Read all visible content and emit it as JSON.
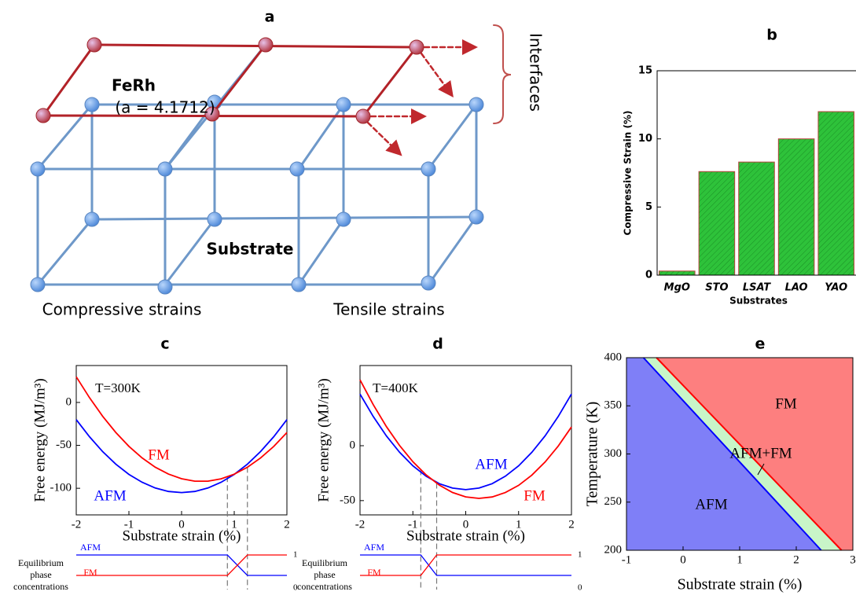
{
  "diagram": {
    "title": "a",
    "film": "FeRh",
    "lattice": "(a = 4.1712)",
    "substrate": "Substrate",
    "left_label": "Compressive strains",
    "right_label": "Tensile strains",
    "interfaces": "Interfaces"
  },
  "chart_data": [
    {
      "type": "bar",
      "title": "b",
      "x_label": "Substrates",
      "y_label": "Compressive Strain (%)",
      "categories": [
        "MgO",
        "STO",
        "LSAT",
        "LAO",
        "YAO"
      ],
      "values": [
        0.3,
        7.6,
        8.3,
        10.0,
        12.0
      ],
      "color": "#2ec23a",
      "ylim": [
        0,
        15
      ],
      "yticks": [
        0,
        5,
        10,
        15
      ]
    },
    {
      "type": "line",
      "title": "c",
      "x_label": "Substrate strain (%)",
      "y_label": "Free energy (MJ/m³)",
      "annotation": "T=300K",
      "x": [
        -2,
        -1.75,
        -1.5,
        -1.25,
        -1,
        -0.75,
        -0.5,
        -0.25,
        0,
        0.25,
        0.5,
        0.75,
        1,
        1.25,
        1.5,
        1.75,
        2
      ],
      "series": [
        {
          "name": "AFM",
          "color": "#0000ff",
          "values": [
            -20,
            -39.9,
            -57.2,
            -71.8,
            -83.8,
            -93,
            -99.7,
            -103.7,
            -105,
            -103.7,
            -99.7,
            -93,
            -83.8,
            -71.8,
            -57.2,
            -39.9,
            -20
          ]
        },
        {
          "name": "FM",
          "color": "#ff0000",
          "values": [
            29.9,
            5.6,
            -16,
            -34.9,
            -51.1,
            -64.6,
            -75.4,
            -83.5,
            -88.9,
            -91.7,
            -91.7,
            -89,
            -83.6,
            -75.5,
            -64.7,
            -51.2,
            -35
          ]
        }
      ],
      "xlim": [
        -2,
        2
      ],
      "xticks": [
        -2,
        -1,
        0,
        1,
        2
      ],
      "ylim": [
        -131,
        43
      ],
      "yticks": [
        0,
        -50,
        -100
      ],
      "coexistence": [
        0.87,
        1.25
      ],
      "phase_label": [
        "Equilibrium",
        "phase",
        "concentrations"
      ],
      "levels": [
        1,
        0
      ]
    },
    {
      "type": "line",
      "title": "d",
      "x_label": "Substrate strain (%)",
      "y_label": "Free energy (MJ/m³)",
      "annotation": "T=400K",
      "x": [
        -2,
        -1.75,
        -1.5,
        -1.25,
        -1,
        -0.75,
        -0.5,
        -0.25,
        0,
        0.25,
        0.5,
        0.75,
        1,
        1.25,
        1.5,
        1.75,
        2
      ],
      "series": [
        {
          "name": "AFM",
          "color": "#0000ff",
          "values": [
            47,
            26.6,
            8.9,
            -6,
            -18.3,
            -27.8,
            -34.6,
            -38.6,
            -40,
            -38.6,
            -34.6,
            -27.8,
            -18.3,
            -6,
            8.9,
            26.6,
            47
          ]
        },
        {
          "name": "FM",
          "color": "#ff0000",
          "values": [
            60,
            37.4,
            17.4,
            0.1,
            -14.6,
            -26.6,
            -35.9,
            -42.6,
            -46.6,
            -48,
            -46.7,
            -42.7,
            -36.1,
            -26.8,
            -14.9,
            -0.3,
            17
          ]
        }
      ],
      "xlim": [
        -2,
        2
      ],
      "xticks": [
        -2,
        -1,
        0,
        1,
        2
      ],
      "ylim": [
        -63,
        73
      ],
      "yticks": [
        0,
        -50
      ],
      "coexistence": [
        -0.85,
        -0.55
      ],
      "phase_label": [
        "Equilibrium",
        "phase",
        "concentrations"
      ],
      "levels": [
        1,
        0
      ]
    },
    {
      "type": "phase",
      "title": "e",
      "x_label": "Substrate strain (%)",
      "y_label": "Temperature (K)",
      "xlim": [
        -1,
        3
      ],
      "xticks": [
        -1,
        0,
        1,
        2,
        3
      ],
      "ylim": [
        200,
        400
      ],
      "yticks": [
        200,
        250,
        300,
        350,
        400
      ],
      "regions": [
        {
          "name": "AFM",
          "color": "#7f7ff7"
        },
        {
          "name": "AFM+FM",
          "color": "#c8f5c8"
        },
        {
          "name": "FM",
          "color": "#fd7f7f"
        }
      ],
      "boundaries": [
        {
          "color": "#0000ff",
          "x": [
            -0.7,
            2.44
          ],
          "y": [
            400,
            200
          ]
        },
        {
          "color": "#ff0000",
          "x": [
            -0.47,
            2.8
          ],
          "y": [
            400,
            200
          ]
        }
      ]
    }
  ]
}
